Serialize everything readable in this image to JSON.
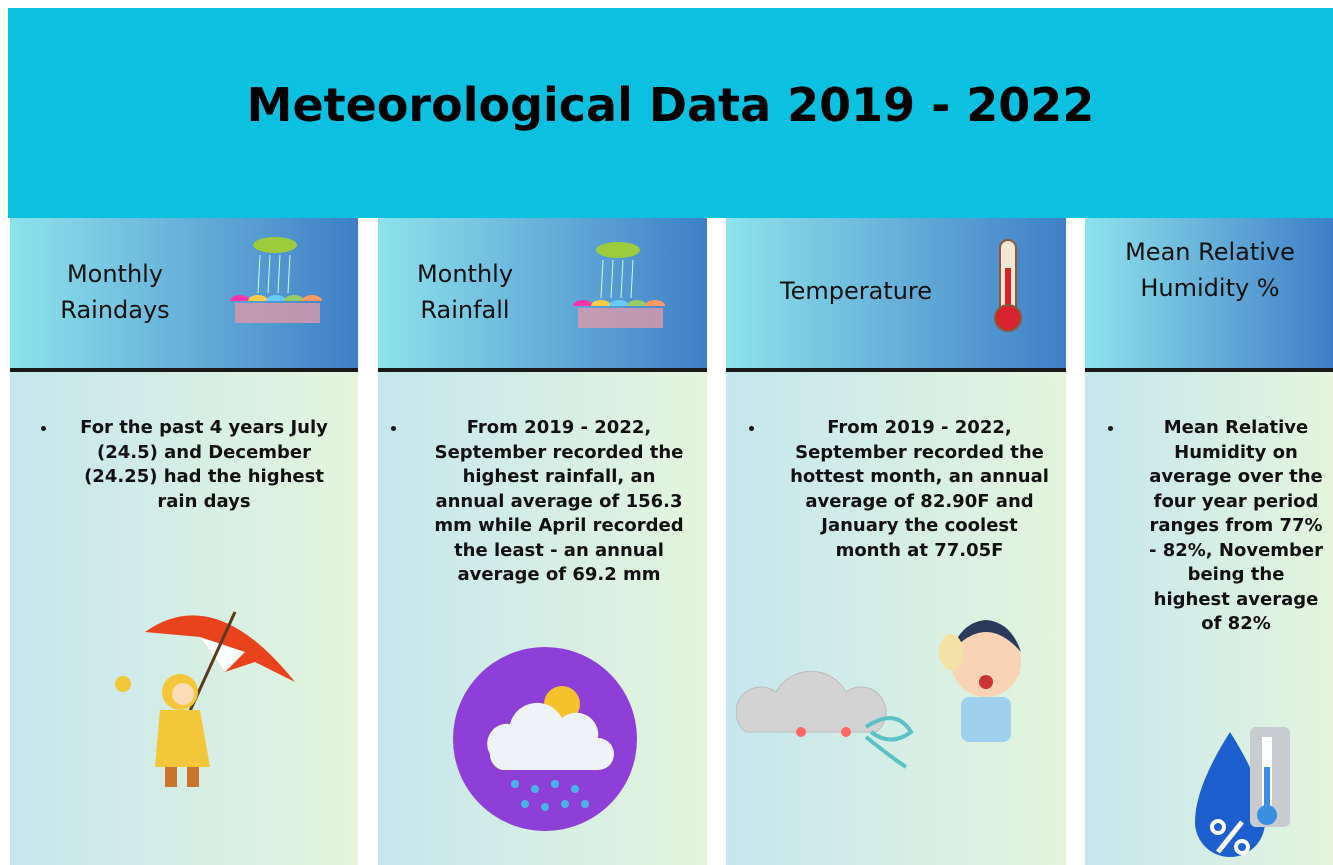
{
  "header": {
    "title": "Meteorological Data 2019 - 2022"
  },
  "panels": [
    {
      "heading": "Monthly Raindays",
      "points": [
        "For the past 4 years July (24.5) and December (24.25) had the highest rain days"
      ]
    },
    {
      "heading": "Monthly Rainfall",
      "points": [
        "From 2019 - 2022, September recorded the highest rainfall, an annual average of 156.3 mm while April recorded the least - an annual average of 69.2 mm"
      ]
    },
    {
      "heading": "Temperature",
      "points": [
        "From 2019 - 2022, September recorded the hottest month, an annual average of 82.90F and January the coolest month at 77.05F"
      ]
    },
    {
      "heading": "Mean Relative Humidity %",
      "points": [
        "Mean Relative Humidity on average over the four year period ranges from 77% - 82%, November being the highest average of 82%"
      ]
    }
  ]
}
